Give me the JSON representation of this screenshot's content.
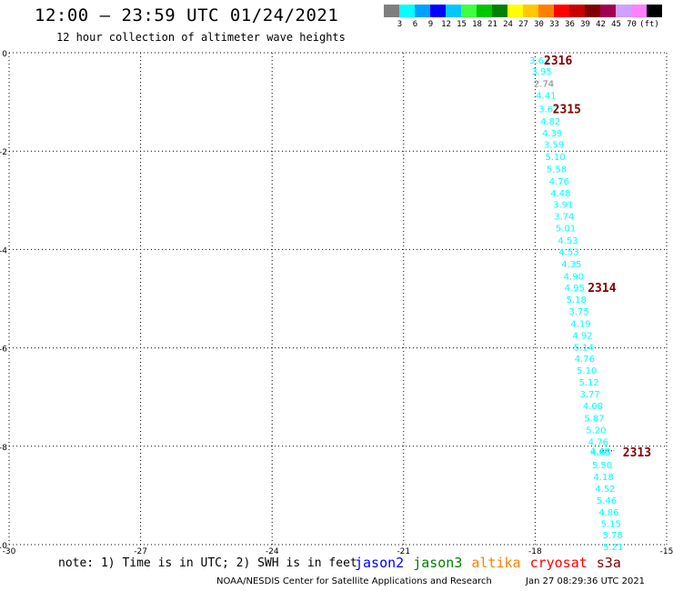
{
  "header": {
    "title": "12:00 – 23:59 UTC 01/24/2021",
    "subtitle": "12 hour collection of altimeter wave heights"
  },
  "color_scale": {
    "unit": "(ft)",
    "entries": [
      {
        "label": "",
        "color": "#7f7f7f"
      },
      {
        "label": "3",
        "color": "#00ffff"
      },
      {
        "label": "6",
        "color": "#00a0ff"
      },
      {
        "label": "9",
        "color": "#0000ff"
      },
      {
        "label": "12",
        "color": "#00c8ff"
      },
      {
        "label": "15",
        "color": "#40ff40"
      },
      {
        "label": "18",
        "color": "#00c800"
      },
      {
        "label": "21",
        "color": "#008000"
      },
      {
        "label": "24",
        "color": "#ffff00"
      },
      {
        "label": "27",
        "color": "#ffc800"
      },
      {
        "label": "30",
        "color": "#ff8000"
      },
      {
        "label": "33",
        "color": "#ff0000"
      },
      {
        "label": "36",
        "color": "#c80000"
      },
      {
        "label": "39",
        "color": "#800000"
      },
      {
        "label": "42",
        "color": "#a00050"
      },
      {
        "label": "45",
        "color": "#d0a0ff"
      },
      {
        "label": "70",
        "color": "#ff80ff"
      },
      {
        "label": "",
        "color": "#000000"
      }
    ]
  },
  "chart_data": {
    "type": "scatter",
    "xlim": [
      -30,
      -15
    ],
    "ylim": [
      -10,
      0
    ],
    "x_ticks": [
      -30,
      -27,
      -24,
      -21,
      -18,
      -15
    ],
    "y_ticks": [
      0,
      -2,
      -4,
      -6,
      -8,
      -10
    ],
    "grid": true,
    "point_color": "#00ffff",
    "points": [
      {
        "x": -17.9,
        "y": -0.15,
        "v": "3.63"
      },
      {
        "x": -17.85,
        "y": -0.37,
        "v": "3.95"
      },
      {
        "x": -17.8,
        "y": -0.62,
        "v": "2.74",
        "color": "#808080"
      },
      {
        "x": -17.75,
        "y": -0.86,
        "v": "4.41"
      },
      {
        "x": -17.69,
        "y": -1.14,
        "v": "3.67"
      },
      {
        "x": -17.65,
        "y": -1.39,
        "v": "4.82"
      },
      {
        "x": -17.61,
        "y": -1.63,
        "v": "4.39"
      },
      {
        "x": -17.57,
        "y": -1.86,
        "v": "3.59"
      },
      {
        "x": -17.54,
        "y": -2.11,
        "v": "5.10"
      },
      {
        "x": -17.51,
        "y": -2.36,
        "v": "5.58"
      },
      {
        "x": -17.45,
        "y": -2.61,
        "v": "4.76"
      },
      {
        "x": -17.42,
        "y": -2.85,
        "v": "4.48"
      },
      {
        "x": -17.36,
        "y": -3.08,
        "v": "3.91"
      },
      {
        "x": -17.34,
        "y": -3.32,
        "v": "3.74"
      },
      {
        "x": -17.3,
        "y": -3.56,
        "v": "5.01"
      },
      {
        "x": -17.25,
        "y": -3.81,
        "v": "4.53"
      },
      {
        "x": -17.23,
        "y": -4.04,
        "v": "4.53"
      },
      {
        "x": -17.17,
        "y": -4.29,
        "v": "4.35"
      },
      {
        "x": -17.12,
        "y": -4.54,
        "v": "4.90"
      },
      {
        "x": -17.1,
        "y": -4.77,
        "v": "4.95"
      },
      {
        "x": -17.06,
        "y": -5.01,
        "v": "5.18"
      },
      {
        "x": -17.0,
        "y": -5.25,
        "v": "3.75"
      },
      {
        "x": -16.96,
        "y": -5.5,
        "v": "4.19"
      },
      {
        "x": -16.92,
        "y": -5.74,
        "v": "4.92"
      },
      {
        "x": -16.89,
        "y": -5.98,
        "v": "5.14"
      },
      {
        "x": -16.87,
        "y": -6.21,
        "v": "4.76"
      },
      {
        "x": -16.82,
        "y": -6.45,
        "v": "5.10"
      },
      {
        "x": -16.77,
        "y": -6.69,
        "v": "5.12"
      },
      {
        "x": -16.75,
        "y": -6.93,
        "v": "3.77"
      },
      {
        "x": -16.68,
        "y": -7.17,
        "v": "4.08"
      },
      {
        "x": -16.65,
        "y": -7.42,
        "v": "5.87"
      },
      {
        "x": -16.61,
        "y": -7.66,
        "v": "5.20"
      },
      {
        "x": -16.56,
        "y": -7.9,
        "v": "4.76"
      },
      {
        "x": -16.52,
        "y": -8.09,
        "v": "4.48"
      },
      {
        "x": -16.5,
        "y": -8.11,
        "v": "4.65"
      },
      {
        "x": -16.47,
        "y": -8.37,
        "v": "5.50"
      },
      {
        "x": -16.44,
        "y": -8.61,
        "v": "4.18"
      },
      {
        "x": -16.4,
        "y": -8.85,
        "v": "4.52"
      },
      {
        "x": -16.37,
        "y": -9.09,
        "v": "5.46"
      },
      {
        "x": -16.32,
        "y": -9.33,
        "v": "4.86"
      },
      {
        "x": -16.27,
        "y": -9.57,
        "v": "5.15"
      },
      {
        "x": -16.23,
        "y": -9.8,
        "v": "5.78"
      },
      {
        "x": -16.22,
        "y": -10.04,
        "v": "5.21"
      }
    ],
    "pass_labels": [
      {
        "x": -17.8,
        "y": -0.15,
        "text": "2316",
        "color": "#800000"
      },
      {
        "x": -17.6,
        "y": -1.14,
        "text": "2315",
        "color": "#800000"
      },
      {
        "x": -16.8,
        "y": -4.77,
        "text": "2314",
        "color": "#800000"
      },
      {
        "x": -16.0,
        "y": -8.11,
        "text": "2313",
        "color": "#800000"
      }
    ],
    "track_dots": {
      "x_start": -16.52,
      "x_end": -16.2,
      "y": -8.09
    }
  },
  "footer": {
    "note": "note:  1) Time is in UTC; 2) SWH is in feet",
    "satellites": [
      {
        "name": "jason2",
        "color": "#0000ff"
      },
      {
        "name": "jason3",
        "color": "#008000"
      },
      {
        "name": "altika",
        "color": "#ff8000"
      },
      {
        "name": "cryosat",
        "color": "#ff0000"
      },
      {
        "name": "s3a",
        "color": "#800000"
      }
    ],
    "credit": "NOAA/NESDIS Center for Satellite Applications and Research",
    "timestamp": "Jan 27 08:29:36 UTC 2021"
  }
}
